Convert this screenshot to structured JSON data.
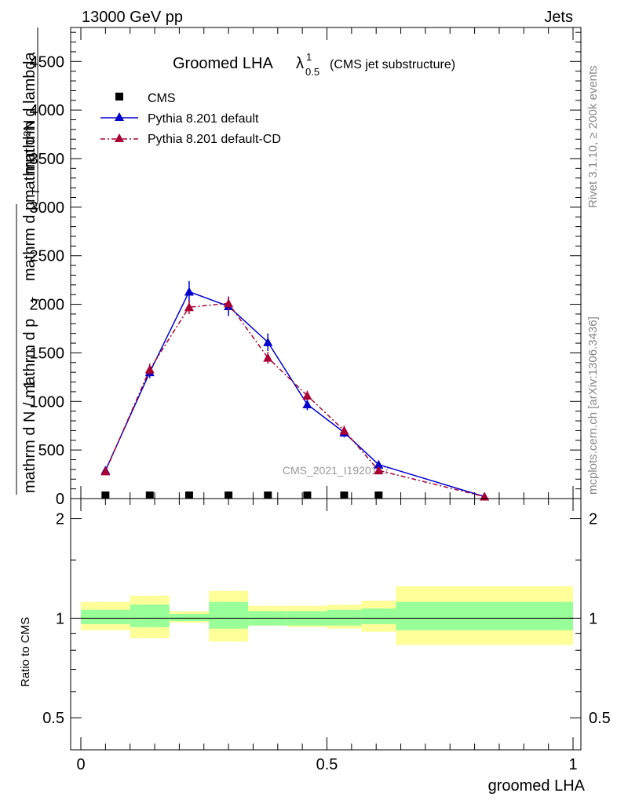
{
  "header": {
    "left": "13000 GeV pp",
    "right": "Jets"
  },
  "side_labels": {
    "rivet": "Rivet 3.1.10, ≥ 200k events",
    "mcplots": "mcplots.cern.ch [arXiv:1306.3436]"
  },
  "watermark": "CMS_2021_I1920187",
  "chart_data": [
    {
      "type": "line",
      "title_main": "Groomed LHA",
      "title_lambda": "λ",
      "title_sup": "1",
      "title_sub": "0.5",
      "title_suffix": "(CMS jet substructure)",
      "ylabel_numerator": "mathrm d²N",
      "ylabel_one": "1",
      "ylabel_den_a": "mathrm d N / mathrm d p",
      "ylabel_den_b": "T",
      "ylabel_top_b": "mathrm d p",
      "ylabel_top_c": "T",
      "ylabel_top_d": "mathrm d lambda",
      "xlim": [
        0,
        1
      ],
      "ylim": [
        0,
        4850
      ],
      "yticks": [
        0,
        500,
        1000,
        1500,
        2000,
        2500,
        3000,
        3500,
        4000,
        4500
      ],
      "ytick_labels": [
        "0",
        "500",
        "1000",
        "1500",
        "2000",
        "2500",
        "3000",
        "3500",
        "4000",
        "4500"
      ],
      "legend_position": "top-left",
      "series": [
        {
          "name": "CMS",
          "color": "#000000",
          "marker": "square",
          "x": [
            0.05,
            0.14,
            0.22,
            0.3,
            0.38,
            0.46,
            0.535,
            0.605
          ],
          "y": [
            0,
            0,
            0,
            0,
            0,
            0,
            0,
            0
          ]
        },
        {
          "name": "Pythia 8.201 default",
          "color": "#0000cc",
          "marker": "triangle",
          "line": "solid",
          "x": [
            0.05,
            0.14,
            0.22,
            0.3,
            0.38,
            0.46,
            0.535,
            0.605,
            0.82
          ],
          "y": [
            290,
            1300,
            2130,
            1980,
            1610,
            970,
            680,
            350,
            20
          ],
          "err": [
            30,
            60,
            110,
            100,
            90,
            60,
            50,
            40,
            10
          ]
        },
        {
          "name": "Pythia 8.201 default-CD",
          "color": "#aa0033",
          "marker": "triangle",
          "line": "dashdot",
          "x": [
            0.05,
            0.14,
            0.22,
            0.3,
            0.38,
            0.46,
            0.535,
            0.605,
            0.82
          ],
          "y": [
            280,
            1330,
            1970,
            2010,
            1450,
            1060,
            700,
            290,
            20
          ],
          "err": [
            30,
            60,
            70,
            70,
            60,
            50,
            50,
            30,
            10
          ]
        }
      ]
    },
    {
      "type": "area",
      "ylabel": "Ratio to CMS",
      "xlabel": "groomed LHA",
      "xlim": [
        0,
        1
      ],
      "ylim": [
        0.4,
        2.3
      ],
      "log_scale": true,
      "yticks": [
        0.5,
        1,
        2
      ],
      "ytick_labels": [
        "0.5",
        "1",
        "2"
      ],
      "xticks": [
        0,
        0.5,
        1
      ],
      "xtick_labels": [
        "0",
        "0.5",
        "1"
      ],
      "reference_line": 1,
      "bands": {
        "inner_color": "#99ff99",
        "outer_color": "#ffff99",
        "bins": [
          {
            "x0": 0.0,
            "x1": 0.1,
            "inner": [
              0.96,
              1.06
            ],
            "outer": [
              0.92,
              1.12
            ]
          },
          {
            "x0": 0.1,
            "x1": 0.18,
            "inner": [
              0.94,
              1.1
            ],
            "outer": [
              0.87,
              1.17
            ]
          },
          {
            "x0": 0.18,
            "x1": 0.26,
            "inner": [
              0.98,
              1.03
            ],
            "outer": [
              0.97,
              1.05
            ]
          },
          {
            "x0": 0.26,
            "x1": 0.34,
            "inner": [
              0.93,
              1.12
            ],
            "outer": [
              0.85,
              1.21
            ]
          },
          {
            "x0": 0.34,
            "x1": 0.42,
            "inner": [
              0.95,
              1.05
            ],
            "outer": [
              0.95,
              1.09
            ]
          },
          {
            "x0": 0.42,
            "x1": 0.5,
            "inner": [
              0.95,
              1.05
            ],
            "outer": [
              0.94,
              1.09
            ]
          },
          {
            "x0": 0.5,
            "x1": 0.57,
            "inner": [
              0.95,
              1.06
            ],
            "outer": [
              0.93,
              1.1
            ]
          },
          {
            "x0": 0.57,
            "x1": 0.64,
            "inner": [
              0.96,
              1.07
            ],
            "outer": [
              0.91,
              1.13
            ]
          },
          {
            "x0": 0.64,
            "x1": 1.0,
            "inner": [
              0.92,
              1.12
            ],
            "outer": [
              0.83,
              1.25
            ]
          }
        ]
      }
    }
  ]
}
